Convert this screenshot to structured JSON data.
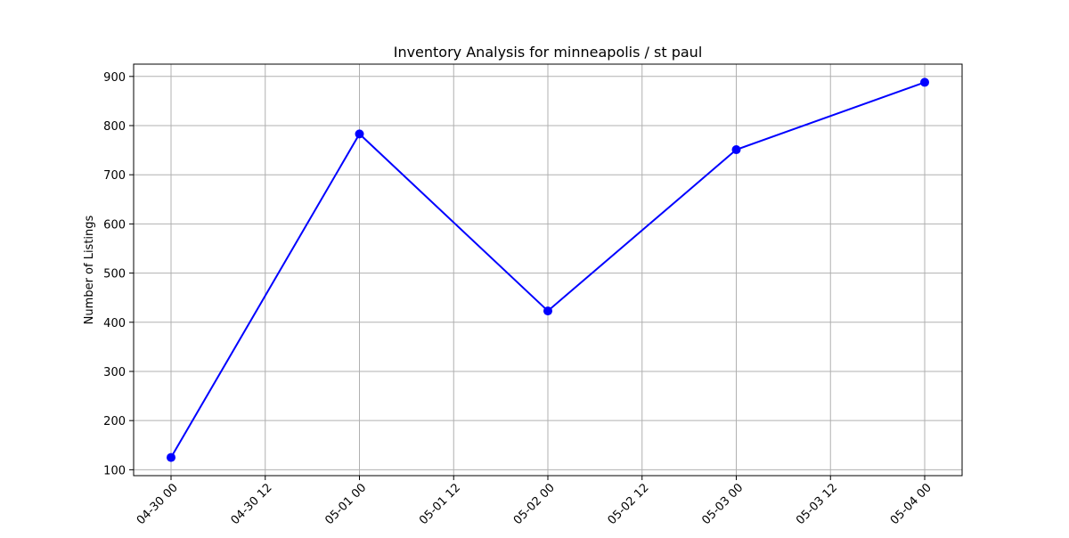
{
  "chart_data": {
    "type": "line",
    "title": "Inventory Analysis for minneapolis / st paul",
    "xlabel": "",
    "ylabel": "Number of Listings",
    "x": [
      "04-30 00",
      "05-01 00",
      "05-02 00",
      "05-03 00",
      "05-04 00"
    ],
    "series": [
      {
        "values": [
          125,
          783,
          423,
          751,
          888
        ],
        "color": "#0000ff",
        "marker": "circle"
      }
    ],
    "x_ticks": [
      "04-30 00",
      "04-30 12",
      "05-01 00",
      "05-01 12",
      "05-02 00",
      "05-02 12",
      "05-03 00",
      "05-03 12",
      "05-04 00"
    ],
    "y_ticks": [
      100,
      200,
      300,
      400,
      500,
      600,
      700,
      800,
      900
    ],
    "ylim": [
      88,
      925
    ],
    "grid": true,
    "legend": "none"
  }
}
